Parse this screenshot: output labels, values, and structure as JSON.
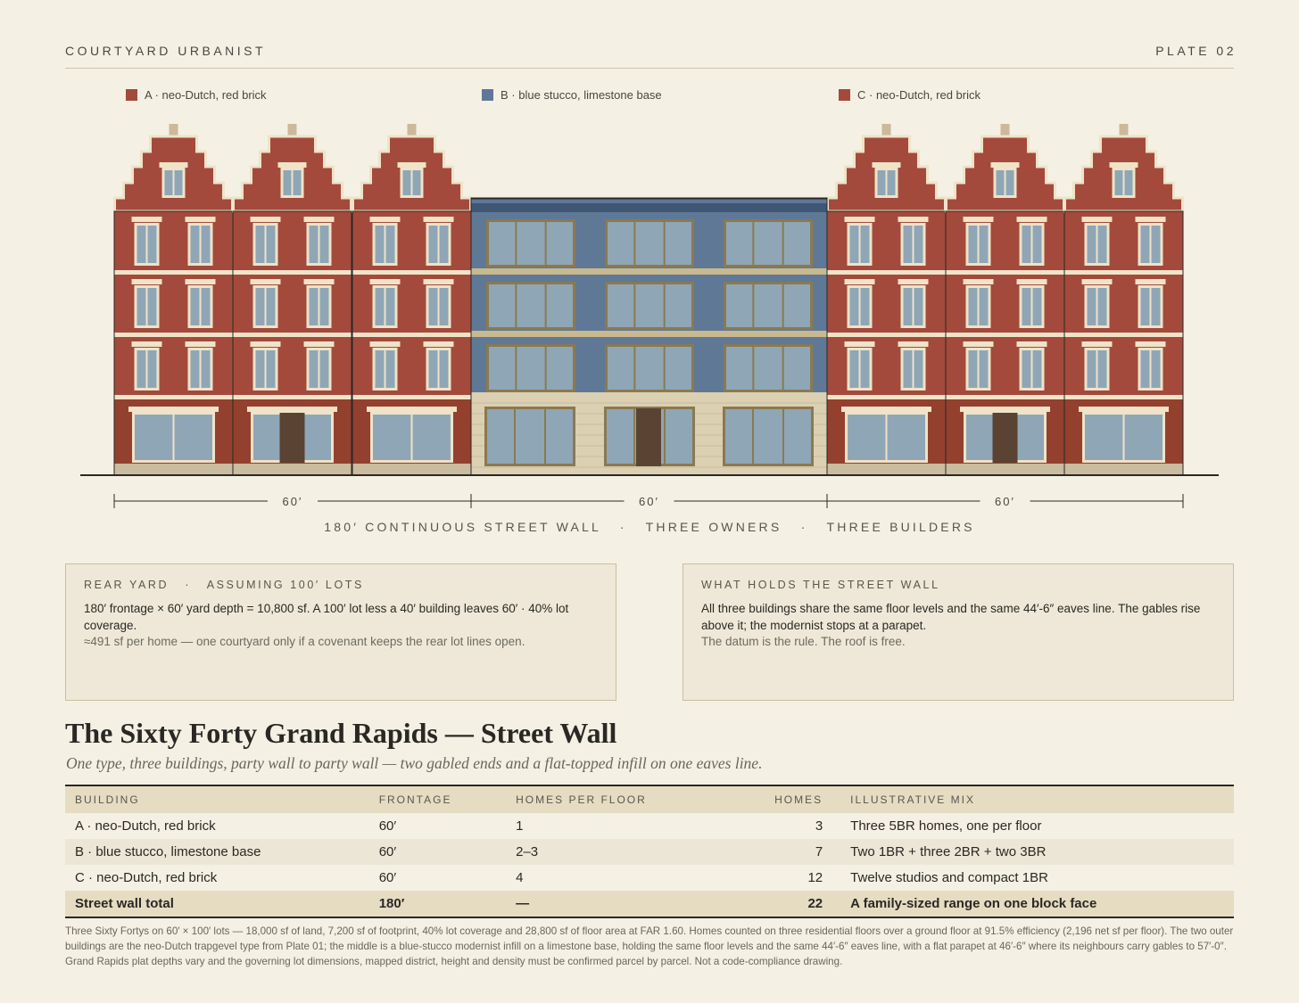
{
  "header": {
    "brand": "COURTYARD URBANIST",
    "plate": "PLATE 02"
  },
  "legend": [
    {
      "label": "A · neo-Dutch, red brick",
      "color": "#a34a3c"
    },
    {
      "label": "B · blue stucco, limestone base",
      "color": "#5f7896"
    },
    {
      "label": "C · neo-Dutch, red brick",
      "color": "#a34a3c"
    }
  ],
  "dimensions": [
    "60′",
    "60′",
    "60′"
  ],
  "caption": "180′ CONTINUOUS STREET WALL   ·   THREE OWNERS   ·   THREE BUILDERS",
  "notes": [
    {
      "title": "REAR YARD   ·   ASSUMING 100′ LOTS",
      "body": "180′ frontage × 60′ yard depth = 10,800 sf. A 100′ lot less a 40′ building leaves 60′ · 40% lot coverage.",
      "aside": "≈491 sf per home — one courtyard only if a covenant keeps the rear lot lines open."
    },
    {
      "title": "WHAT HOLDS THE STREET WALL",
      "body": "All three buildings share the same floor levels and the same 44′-6″ eaves line. The gables rise above it; the modernist stops at a parapet.",
      "aside": "The datum is the rule. The roof is free."
    }
  ],
  "title": "The Sixty Forty Grand Rapids — Street Wall",
  "subtitle": "One type, three buildings, party wall to party wall — two gabled ends and a flat-topped infill on one eaves line.",
  "table": {
    "columns": [
      "BUILDING",
      "FRONTAGE",
      "HOMES PER FLOOR",
      "HOMES",
      "ILLUSTRATIVE MIX"
    ],
    "rows": [
      [
        "A · neo-Dutch, red brick",
        "60′",
        "1",
        "3",
        "Three 5BR homes, one per floor"
      ],
      [
        "B · blue stucco, limestone base",
        "60′",
        "2–3",
        "7",
        "Two 1BR + three 2BR + two 3BR"
      ],
      [
        "C · neo-Dutch, red brick",
        "60′",
        "4",
        "12",
        "Twelve studios and compact 1BR"
      ]
    ],
    "total": [
      "Street wall total",
      "180′",
      "—",
      "22",
      "A family-sized range on one block face"
    ]
  },
  "footnote": "Three Sixty Fortys on 60′ × 100′ lots — 18,000 sf of land, 7,200 sf of footprint, 40% lot coverage and 28,800 sf of floor area at FAR 1.60. Homes counted on three residential floors over a ground floor at 91.5% efficiency (2,196 net sf per floor). The two outer buildings are the neo-Dutch trapgevel type from Plate 01; the middle is a blue-stucco modernist infill on a limestone base, holding the same floor levels and the same 44′-6″ eaves line, with a flat parapet at 46′-6″ where its neighbours carry gables to 57′-0″. Grand Rapids plat depths vary and the governing lot dimensions, mapped district, height and density must be confirmed parcel by parcel. Not a code-compliance drawing."
}
